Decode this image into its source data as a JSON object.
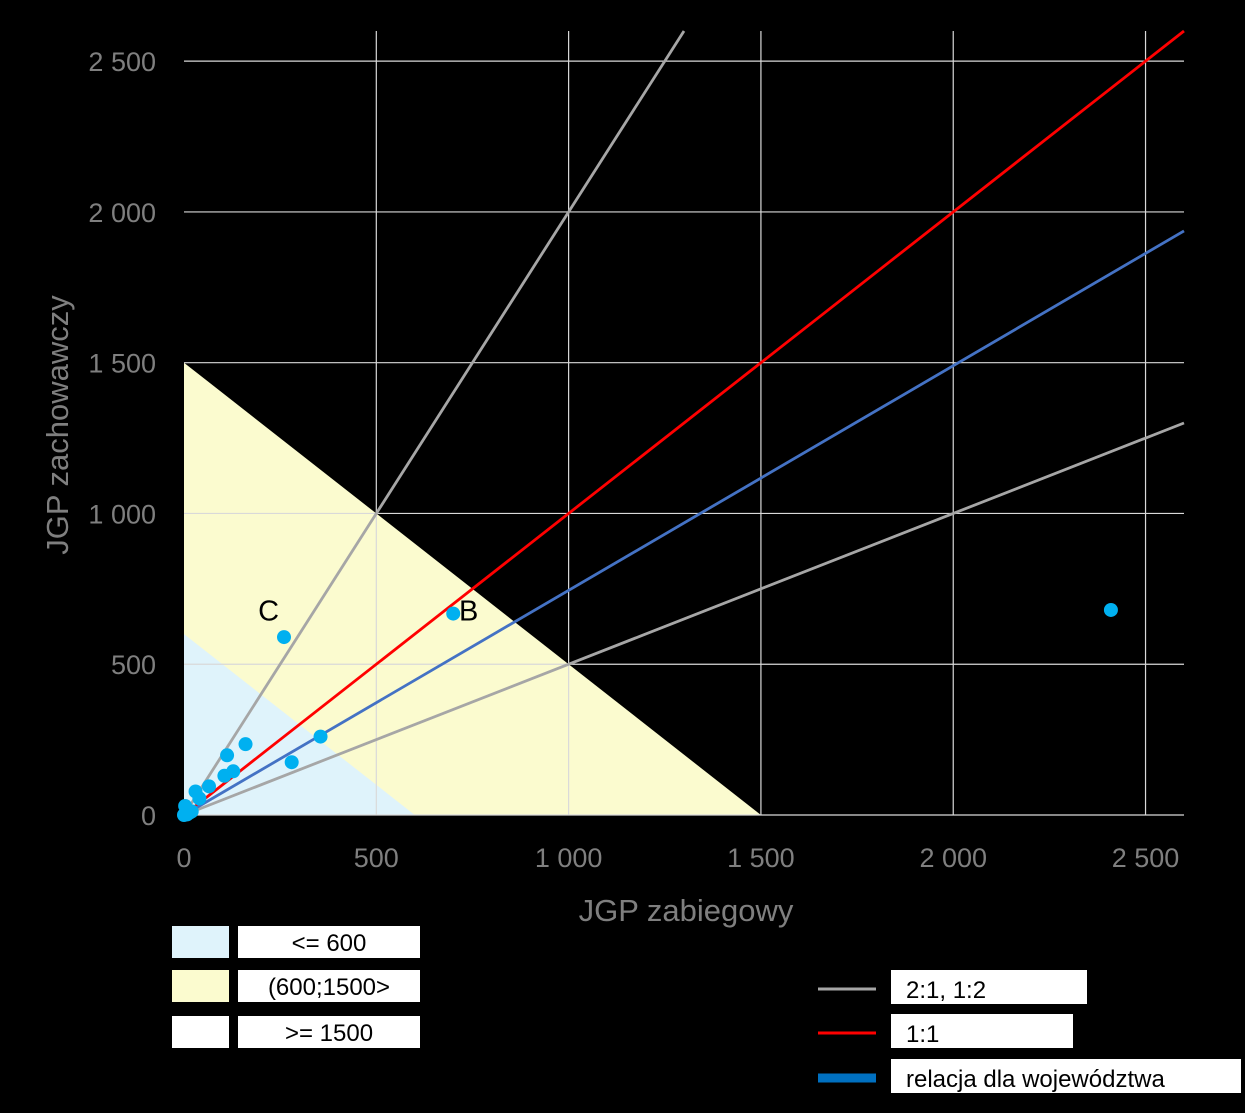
{
  "chart_data": {
    "type": "scatter",
    "xlabel": "JGP zabiegowy",
    "ylabel": "JGP zachowawczy",
    "xlim": [
      0,
      2600
    ],
    "ylim": [
      0,
      2600
    ],
    "x_ticks": [
      0,
      500,
      1000,
      1500,
      2000,
      2500
    ],
    "y_ticks": [
      0,
      500,
      1000,
      1500,
      2000,
      2500
    ],
    "x_tick_labels": [
      "0",
      "500",
      "1 000",
      "1 500",
      "2 000",
      "2 500"
    ],
    "y_tick_labels": [
      "0",
      "500",
      "1 000",
      "1 500",
      "2 000",
      "2 500"
    ],
    "grid": true,
    "regions": [
      {
        "label": "<= 600",
        "threshold": 600,
        "color": "#dff3fb"
      },
      {
        "label": "(600;1500>",
        "threshold": 1500,
        "color": "#fbfbcf"
      },
      {
        "label": ">= 1500",
        "color": "#ffffff"
      }
    ],
    "reference_lines": [
      {
        "label": "2:1, 1:2",
        "slopes": [
          2,
          0.5
        ],
        "color": "#a6a6a6"
      },
      {
        "label": "1:1",
        "slopes": [
          1
        ],
        "color": "#ff0000"
      },
      {
        "label": "relacja dla województwa",
        "slopes": [
          0.745
        ],
        "color": "#4472c4",
        "legend_color": "#0070c0"
      }
    ],
    "points_color": "#00b0f0",
    "points": [
      {
        "x": 0,
        "y": 0
      },
      {
        "x": 5,
        "y": 5
      },
      {
        "x": 8,
        "y": 2
      },
      {
        "x": 15,
        "y": 8
      },
      {
        "x": 3,
        "y": 30
      },
      {
        "x": 20,
        "y": 12
      },
      {
        "x": 30,
        "y": 78
      },
      {
        "x": 40,
        "y": 55
      },
      {
        "x": 65,
        "y": 95
      },
      {
        "x": 105,
        "y": 130
      },
      {
        "x": 112,
        "y": 198
      },
      {
        "x": 128,
        "y": 145
      },
      {
        "x": 160,
        "y": 235
      },
      {
        "x": 260,
        "y": 590
      },
      {
        "x": 280,
        "y": 175
      },
      {
        "x": 355,
        "y": 260
      },
      {
        "x": 700,
        "y": 668
      },
      {
        "x": 2410,
        "y": 680
      }
    ],
    "annotations": [
      {
        "text": "C",
        "x": 220,
        "y": 645
      },
      {
        "text": "B",
        "x": 740,
        "y": 645
      }
    ]
  }
}
